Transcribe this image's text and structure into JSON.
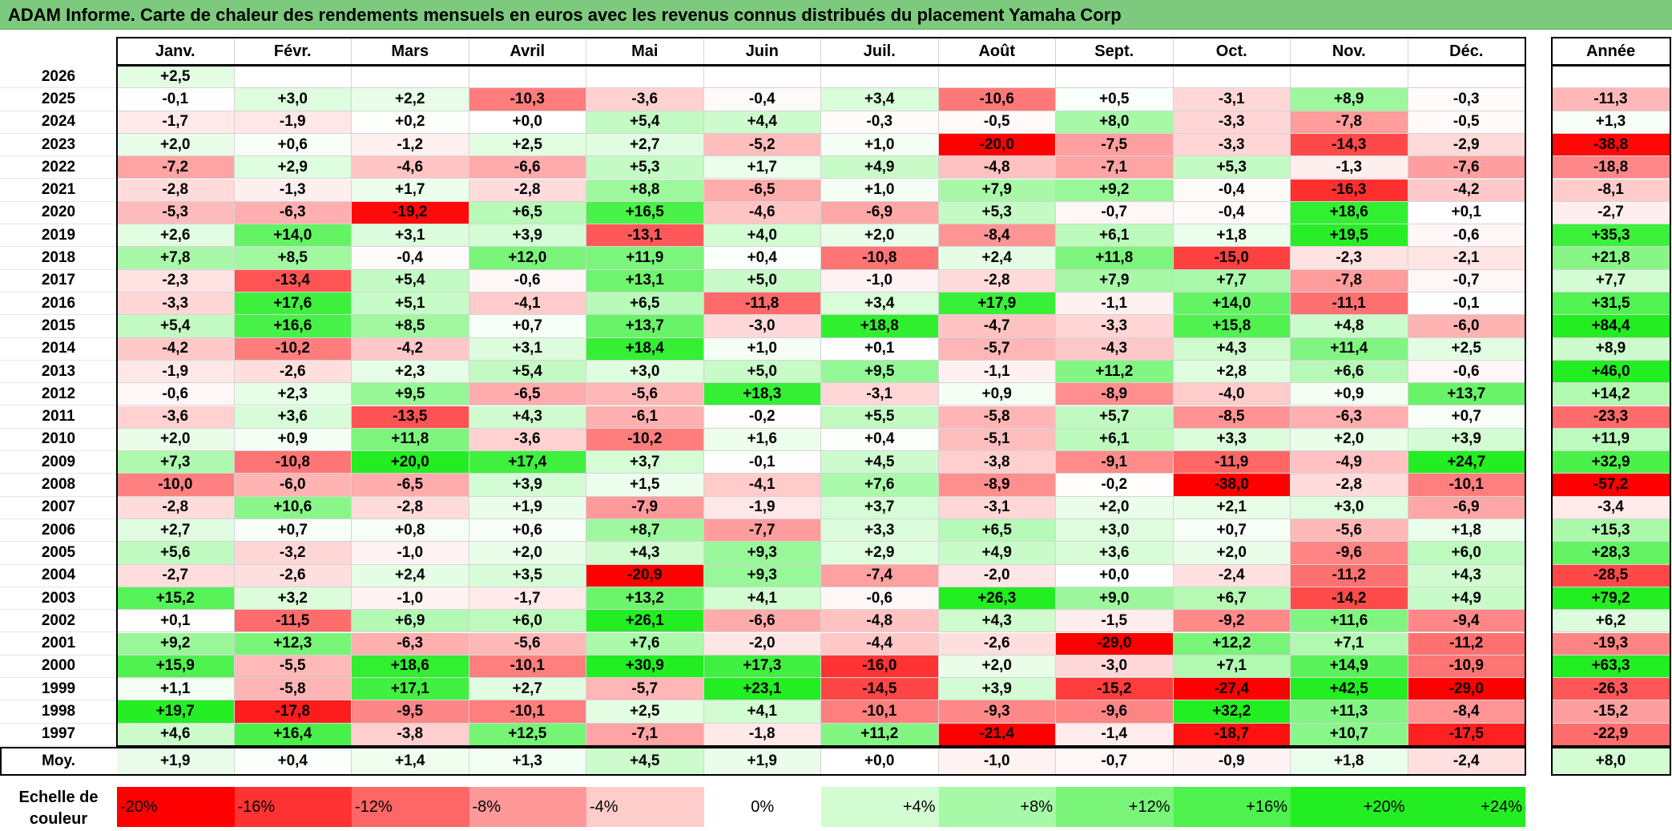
{
  "title": "ADAM Informe. Carte de chaleur des rendements mensuels en euros avec les revenus connus distribués du placement Yamaha Corp",
  "colors": {
    "title_bar": "#7dc97d",
    "neg_max": "#ff0000",
    "pos_max": "#22ee22",
    "neutral": "#ffffff"
  },
  "chart_data": {
    "type": "heatmap",
    "months": [
      "Janv.",
      "Févr.",
      "Mars",
      "Avril",
      "Mai",
      "Juin",
      "Juil.",
      "Août",
      "Sept.",
      "Oct.",
      "Nov.",
      "Déc."
    ],
    "year_header": "Année",
    "rows": [
      {
        "year": "2026",
        "months": [
          "+2,5",
          "",
          "",
          "",
          "",
          "",
          "",
          "",
          "",
          "",
          "",
          ""
        ],
        "annual": ""
      },
      {
        "year": "2025",
        "months": [
          "-0,1",
          "+3,0",
          "+2,2",
          "-10,3",
          "-3,6",
          "-0,4",
          "+3,4",
          "-10,6",
          "+0,5",
          "-3,1",
          "+8,9",
          "-0,3"
        ],
        "annual": "-11,3"
      },
      {
        "year": "2024",
        "months": [
          "-1,7",
          "-1,9",
          "+0,2",
          "+0,0",
          "+5,4",
          "+4,4",
          "-0,3",
          "-0,5",
          "+8,0",
          "-3,3",
          "-7,8",
          "-0,5"
        ],
        "annual": "+1,3"
      },
      {
        "year": "2023",
        "months": [
          "+2,0",
          "+0,6",
          "-1,2",
          "+2,5",
          "+2,7",
          "-5,2",
          "+1,0",
          "-20,0",
          "-7,5",
          "-3,3",
          "-14,3",
          "-2,9"
        ],
        "annual": "-38,8"
      },
      {
        "year": "2022",
        "months": [
          "-7,2",
          "+2,9",
          "-4,6",
          "-6,6",
          "+5,3",
          "+1,7",
          "+4,9",
          "-4,8",
          "-7,1",
          "+5,3",
          "-1,3",
          "-7,6"
        ],
        "annual": "-18,8"
      },
      {
        "year": "2021",
        "months": [
          "-2,8",
          "-1,3",
          "+1,7",
          "-2,8",
          "+8,8",
          "-6,5",
          "+1,0",
          "+7,9",
          "+9,2",
          "-0,4",
          "-16,3",
          "-4,2"
        ],
        "annual": "-8,1"
      },
      {
        "year": "2020",
        "months": [
          "-5,3",
          "-6,3",
          "-19,2",
          "+6,5",
          "+16,5",
          "-4,6",
          "-6,9",
          "+5,3",
          "-0,7",
          "-0,4",
          "+18,6",
          "+0,1"
        ],
        "annual": "-2,7"
      },
      {
        "year": "2019",
        "months": [
          "+2,6",
          "+14,0",
          "+3,1",
          "+3,9",
          "-13,1",
          "+4,0",
          "+2,0",
          "-8,4",
          "+6,1",
          "+1,8",
          "+19,5",
          "-0,6"
        ],
        "annual": "+35,3"
      },
      {
        "year": "2018",
        "months": [
          "+7,8",
          "+8,5",
          "-0,4",
          "+12,0",
          "+11,9",
          "+0,4",
          "-10,8",
          "+2,4",
          "+11,8",
          "-15,0",
          "-2,3",
          "-2,1"
        ],
        "annual": "+21,8"
      },
      {
        "year": "2017",
        "months": [
          "-2,3",
          "-13,4",
          "+5,4",
          "-0,6",
          "+13,1",
          "+5,0",
          "-1,0",
          "-2,8",
          "+7,9",
          "+7,7",
          "-7,8",
          "-0,7"
        ],
        "annual": "+7,7"
      },
      {
        "year": "2016",
        "months": [
          "-3,3",
          "+17,6",
          "+5,1",
          "-4,1",
          "+6,5",
          "-11,8",
          "+3,4",
          "+17,9",
          "-1,1",
          "+14,0",
          "-11,1",
          "-0,1"
        ],
        "annual": "+31,5"
      },
      {
        "year": "2015",
        "months": [
          "+5,4",
          "+16,6",
          "+8,5",
          "+0,7",
          "+13,7",
          "-3,0",
          "+18,8",
          "-4,7",
          "-3,3",
          "+15,8",
          "+4,8",
          "-6,0"
        ],
        "annual": "+84,4"
      },
      {
        "year": "2014",
        "months": [
          "-4,2",
          "-10,2",
          "-4,2",
          "+3,1",
          "+18,4",
          "+1,0",
          "+0,1",
          "-5,7",
          "-4,3",
          "+4,3",
          "+11,4",
          "+2,5"
        ],
        "annual": "+8,9"
      },
      {
        "year": "2013",
        "months": [
          "-1,9",
          "-2,6",
          "+2,3",
          "+5,4",
          "+3,0",
          "+5,0",
          "+9,5",
          "-1,1",
          "+11,2",
          "+2,8",
          "+6,6",
          "-0,6"
        ],
        "annual": "+46,0"
      },
      {
        "year": "2012",
        "months": [
          "-0,6",
          "+2,3",
          "+9,5",
          "-6,5",
          "-5,6",
          "+18,3",
          "-3,1",
          "+0,9",
          "-8,9",
          "-4,0",
          "+0,9",
          "+13,7"
        ],
        "annual": "+14,2"
      },
      {
        "year": "2011",
        "months": [
          "-3,6",
          "+3,6",
          "-13,5",
          "+4,3",
          "-6,1",
          "-0,2",
          "+5,5",
          "-5,8",
          "+5,7",
          "-8,5",
          "-6,3",
          "+0,7"
        ],
        "annual": "-23,3"
      },
      {
        "year": "2010",
        "months": [
          "+2,0",
          "+0,9",
          "+11,8",
          "-3,6",
          "-10,2",
          "+1,6",
          "+0,4",
          "-5,1",
          "+6,1",
          "+3,3",
          "+2,0",
          "+3,9"
        ],
        "annual": "+11,9"
      },
      {
        "year": "2009",
        "months": [
          "+7,3",
          "-10,8",
          "+20,0",
          "+17,4",
          "+3,7",
          "-0,1",
          "+4,5",
          "-3,8",
          "-9,1",
          "-11,9",
          "-4,9",
          "+24,7"
        ],
        "annual": "+32,9"
      },
      {
        "year": "2008",
        "months": [
          "-10,0",
          "-6,0",
          "-6,5",
          "+3,9",
          "+1,5",
          "-4,1",
          "+7,6",
          "-8,9",
          "-0,2",
          "-38,0",
          "-2,8",
          "-10,1"
        ],
        "annual": "-57,2"
      },
      {
        "year": "2007",
        "months": [
          "-2,8",
          "+10,6",
          "-2,8",
          "+1,9",
          "-7,9",
          "-1,9",
          "+3,7",
          "-3,1",
          "+2,0",
          "+2,1",
          "+3,0",
          "-6,9"
        ],
        "annual": "-3,4"
      },
      {
        "year": "2006",
        "months": [
          "+2,7",
          "+0,7",
          "+0,8",
          "+0,6",
          "+8,7",
          "-7,7",
          "+3,3",
          "+6,5",
          "+3,0",
          "+0,7",
          "-5,6",
          "+1,8"
        ],
        "annual": "+15,3"
      },
      {
        "year": "2005",
        "months": [
          "+5,6",
          "-3,2",
          "-1,0",
          "+2,0",
          "+4,3",
          "+9,3",
          "+2,9",
          "+4,9",
          "+3,6",
          "+2,0",
          "-9,6",
          "+6,0"
        ],
        "annual": "+28,3"
      },
      {
        "year": "2004",
        "months": [
          "-2,7",
          "-2,6",
          "+2,4",
          "+3,5",
          "-20,9",
          "+9,3",
          "-7,4",
          "-2,0",
          "+0,0",
          "-2,4",
          "-11,2",
          "+4,3"
        ],
        "annual": "-28,5"
      },
      {
        "year": "2003",
        "months": [
          "+15,2",
          "+3,2",
          "-1,0",
          "-1,7",
          "+13,2",
          "+4,1",
          "-0,6",
          "+26,3",
          "+9,0",
          "+6,7",
          "-14,2",
          "+4,9"
        ],
        "annual": "+79,2"
      },
      {
        "year": "2002",
        "months": [
          "+0,1",
          "-11,5",
          "+6,9",
          "+6,0",
          "+26,1",
          "-6,6",
          "-4,8",
          "+4,3",
          "-1,5",
          "-9,2",
          "+11,6",
          "-9,4"
        ],
        "annual": "+6,2"
      },
      {
        "year": "2001",
        "months": [
          "+9,2",
          "+12,3",
          "-6,3",
          "-5,6",
          "+7,6",
          "-2,0",
          "-4,4",
          "-2,6",
          "-29,0",
          "+12,2",
          "+7,1",
          "-11,2"
        ],
        "annual": "-19,3"
      },
      {
        "year": "2000",
        "months": [
          "+15,9",
          "-5,5",
          "+18,6",
          "-10,1",
          "+30,9",
          "+17,3",
          "-16,0",
          "+2,0",
          "-3,0",
          "+7,1",
          "+14,9",
          "-10,9"
        ],
        "annual": "+63,3"
      },
      {
        "year": "1999",
        "months": [
          "+1,1",
          "-5,8",
          "+17,1",
          "+2,7",
          "-5,7",
          "+23,1",
          "-14,5",
          "+3,9",
          "-15,2",
          "-27,4",
          "+42,5",
          "-29,0"
        ],
        "annual": "-26,3"
      },
      {
        "year": "1998",
        "months": [
          "+19,7",
          "-17,8",
          "-9,5",
          "-10,1",
          "+2,5",
          "+4,1",
          "-10,1",
          "-9,3",
          "-9,6",
          "+32,2",
          "+11,3",
          "-8,4"
        ],
        "annual": "-15,2"
      },
      {
        "year": "1997",
        "months": [
          "+4,6",
          "+16,4",
          "-3,8",
          "+12,5",
          "-7,1",
          "-1,8",
          "+11,2",
          "-21,4",
          "-1,4",
          "-18,7",
          "+10,7",
          "-17,5"
        ],
        "annual": "-22,9"
      }
    ],
    "average": {
      "label": "Moy.",
      "months": [
        "+1,9",
        "+0,4",
        "+1,4",
        "+1,3",
        "+4,5",
        "+1,9",
        "+0,0",
        "-1,0",
        "-0,7",
        "-0,9",
        "+1,8",
        "-2,4"
      ],
      "annual": "+8,0"
    },
    "color_scale": {
      "label_line1": "Echelle de",
      "label_line2": "couleur",
      "stops": [
        "-20%",
        "-16%",
        "-12%",
        "-8%",
        "-4%",
        "0%",
        "+4%",
        "+8%",
        "+12%",
        "+16%",
        "+20%",
        "+24%"
      ],
      "stop_values": [
        -20,
        -16,
        -12,
        -8,
        -4,
        0,
        4,
        8,
        12,
        16,
        20,
        24
      ]
    }
  }
}
